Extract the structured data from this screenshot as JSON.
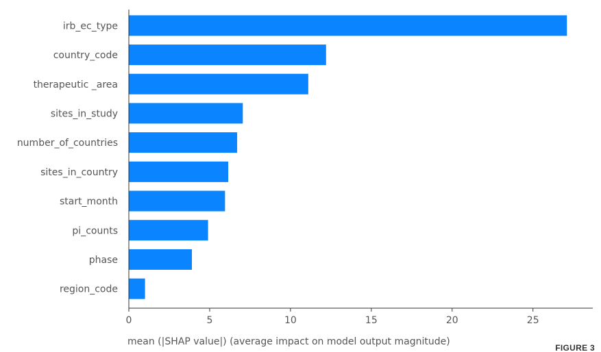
{
  "chart_data": {
    "type": "bar",
    "orientation": "horizontal",
    "categories": [
      "irb_ec_type",
      "country_code",
      "therapeutic _area",
      "sites_in_study",
      "number_of_countries",
      "sites_in_country",
      "start_month",
      "pi_counts",
      "phase",
      "region_code"
    ],
    "values": [
      27.1,
      12.2,
      11.1,
      7.05,
      6.7,
      6.15,
      5.95,
      4.9,
      3.9,
      1.0
    ],
    "xlabel": "mean (|SHAP value|) (average impact on model output magnitude)",
    "ylabel": "",
    "xlim": [
      0,
      28.7
    ],
    "xticks": [
      0,
      5,
      10,
      15,
      20,
      25
    ],
    "bar_color": "#0a84ff",
    "grid": false
  },
  "figure_label": "FIGURE 3"
}
